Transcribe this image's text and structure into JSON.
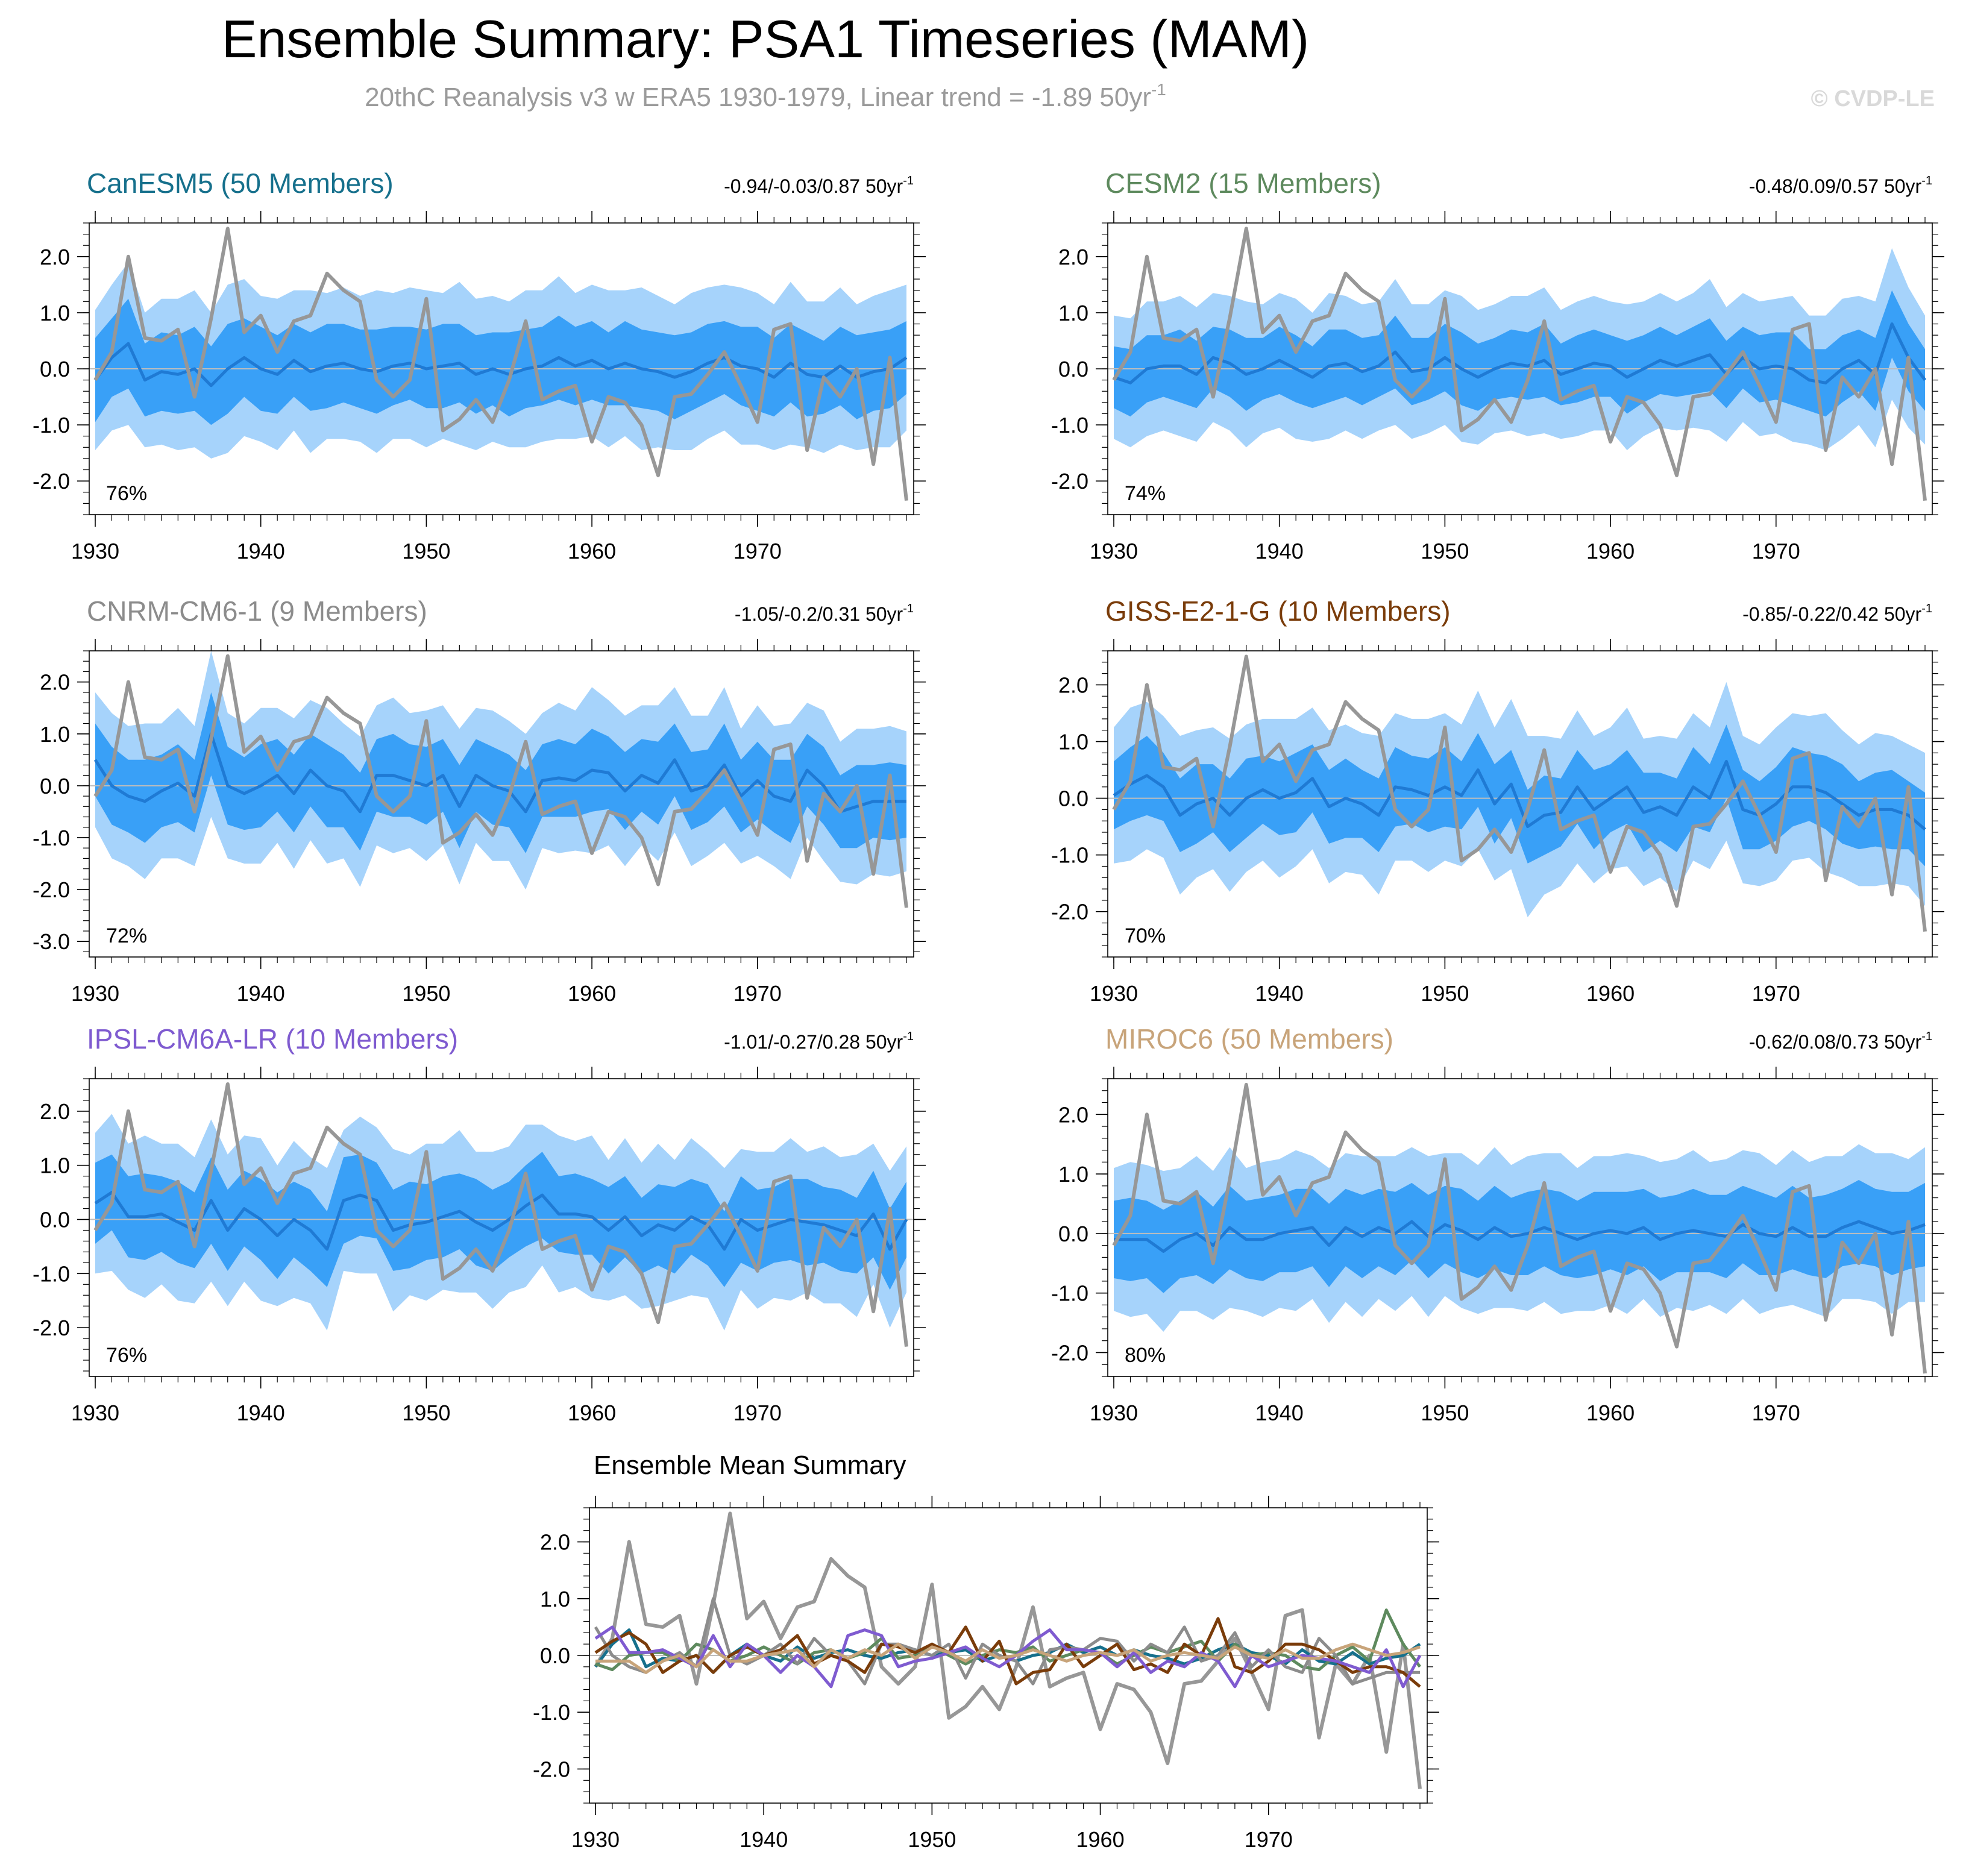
{
  "header": {
    "title": "Ensemble Summary: PSA1 Timeseries (MAM)",
    "subtitle": "20thC Reanalysis v3 w ERA5 1930-1979, Linear trend = -1.89 50yr",
    "subtitle_sup": "-1",
    "watermark": "© CVDP-LE"
  },
  "colors": {
    "outer_band": "#a6d3fb",
    "inner_band": "#39a0f7",
    "ens_mean": "#1f7ad4",
    "obs": "#979797",
    "zero_line": "#bdbdbd"
  },
  "chart_data": [
    {
      "type": "area",
      "model": "CanESM5 (50 Members)",
      "model_color": "#16708c",
      "trend_text": "-0.94/-0.03/0.87 50yr",
      "trend_sup": "-1",
      "pct_label": "76%",
      "ylim": [
        -2.6,
        2.6
      ],
      "yticks": [
        -2.0,
        -1.0,
        0.0,
        1.0,
        2.0
      ],
      "ytick_labels": [
        "-2.0",
        "-1.0",
        "0.0",
        "1.0",
        "2.0"
      ],
      "xticks": [
        1930,
        1940,
        1950,
        1960,
        1970
      ],
      "xtick_labels": [
        "1930",
        "1940",
        "1950",
        "1960",
        "1970"
      ],
      "ens_mean": [
        -0.2,
        0.2,
        0.45,
        -0.2,
        -0.05,
        -0.1,
        0.0,
        -0.3,
        0.0,
        0.2,
        0.0,
        -0.1,
        0.15,
        -0.05,
        0.05,
        0.1,
        0.0,
        -0.05,
        0.05,
        0.1,
        0.0,
        0.05,
        0.1,
        -0.1,
        0.0,
        -0.1,
        0.0,
        0.05,
        0.2,
        0.05,
        0.15,
        0.0,
        0.1,
        0.0,
        -0.05,
        -0.15,
        -0.05,
        0.1,
        0.2,
        0.05,
        0.0,
        -0.15,
        0.1,
        -0.1,
        -0.15,
        0.05,
        -0.15,
        -0.05,
        0.0,
        0.2
      ],
      "inner_spread": [
        0.75,
        0.7,
        0.8,
        0.65,
        0.7,
        0.7,
        0.75,
        0.7,
        0.8,
        0.7,
        0.75,
        0.7,
        0.65,
        0.7,
        0.75,
        0.7,
        0.7,
        0.75,
        0.7,
        0.65,
        0.7,
        0.75,
        0.7,
        0.7,
        0.65,
        0.75,
        0.7,
        0.7,
        0.75,
        0.7,
        0.7,
        0.65,
        0.75,
        0.7,
        0.7,
        0.75,
        0.7,
        0.7,
        0.65,
        0.7,
        0.75,
        0.7,
        0.7,
        0.75,
        0.65,
        0.7,
        0.75,
        0.7,
        0.7,
        0.65
      ],
      "outer_spread": [
        1.25,
        1.3,
        1.45,
        1.2,
        1.3,
        1.35,
        1.4,
        1.3,
        1.5,
        1.4,
        1.3,
        1.35,
        1.25,
        1.45,
        1.3,
        1.35,
        1.3,
        1.45,
        1.3,
        1.35,
        1.4,
        1.3,
        1.45,
        1.35,
        1.3,
        1.3,
        1.4,
        1.35,
        1.45,
        1.3,
        1.35,
        1.4,
        1.3,
        1.45,
        1.35,
        1.3,
        1.4,
        1.35,
        1.3,
        1.4,
        1.35,
        1.3,
        1.45,
        1.3,
        1.35,
        1.4,
        1.3,
        1.35,
        1.4,
        1.3
      ]
    },
    {
      "type": "area",
      "model": "CESM2 (15 Members)",
      "model_color": "#5e8a5e",
      "trend_text": "-0.48/0.09/0.57 50yr",
      "trend_sup": "-1",
      "pct_label": "74%",
      "ylim": [
        -2.6,
        2.6
      ],
      "yticks": [
        -2.0,
        -1.0,
        0.0,
        1.0,
        2.0
      ],
      "ytick_labels": [
        "-2.0",
        "-1.0",
        "0.0",
        "1.0",
        "2.0"
      ],
      "xticks": [
        1930,
        1940,
        1950,
        1960,
        1970
      ],
      "xtick_labels": [
        "1930",
        "1940",
        "1950",
        "1960",
        "1970"
      ],
      "ens_mean": [
        -0.15,
        -0.25,
        0.0,
        0.05,
        0.05,
        -0.1,
        0.2,
        0.1,
        -0.1,
        0.0,
        0.15,
        0.0,
        -0.15,
        0.05,
        0.1,
        -0.05,
        0.05,
        0.3,
        -0.05,
        0.0,
        0.2,
        0.0,
        -0.15,
        0.0,
        0.1,
        0.05,
        0.15,
        -0.1,
        0.0,
        0.1,
        0.05,
        -0.15,
        0.0,
        0.15,
        0.05,
        0.15,
        0.25,
        -0.1,
        0.2,
        0.0,
        0.05,
        0.0,
        -0.2,
        -0.25,
        0.0,
        0.15,
        -0.1,
        0.8,
        0.2,
        -0.2
      ],
      "inner_spread": [
        0.55,
        0.6,
        0.6,
        0.55,
        0.65,
        0.6,
        0.55,
        0.6,
        0.65,
        0.55,
        0.6,
        0.6,
        0.55,
        0.65,
        0.6,
        0.6,
        0.55,
        0.65,
        0.6,
        0.55,
        0.6,
        0.65,
        0.6,
        0.55,
        0.6,
        0.6,
        0.65,
        0.55,
        0.6,
        0.6,
        0.55,
        0.65,
        0.6,
        0.6,
        0.55,
        0.6,
        0.65,
        0.6,
        0.55,
        0.6,
        0.6,
        0.65,
        0.55,
        0.6,
        0.6,
        0.55,
        0.65,
        0.6,
        0.6,
        0.55
      ],
      "outer_spread": [
        1.1,
        1.15,
        1.2,
        1.15,
        1.25,
        1.2,
        1.15,
        1.2,
        1.3,
        1.15,
        1.2,
        1.25,
        1.15,
        1.3,
        1.2,
        1.2,
        1.15,
        1.3,
        1.2,
        1.15,
        1.2,
        1.3,
        1.2,
        1.15,
        1.2,
        1.25,
        1.3,
        1.15,
        1.2,
        1.2,
        1.15,
        1.3,
        1.2,
        1.2,
        1.15,
        1.2,
        1.35,
        1.2,
        1.15,
        1.2,
        1.2,
        1.3,
        1.15,
        1.2,
        1.25,
        1.15,
        1.3,
        1.35,
        1.25,
        1.15
      ]
    },
    {
      "type": "area",
      "model": "CNRM-CM6-1 (9 Members)",
      "model_color": "#8c8c8c",
      "trend_text": "-1.05/-0.2/0.31 50yr",
      "trend_sup": "-1",
      "pct_label": "72%",
      "ylim": [
        -3.3,
        2.6
      ],
      "yticks": [
        -3.0,
        -2.0,
        -1.0,
        0.0,
        1.0,
        2.0
      ],
      "ytick_labels": [
        "-3.0",
        "-2.0",
        "-1.0",
        "0.0",
        "1.0",
        "2.0"
      ],
      "xticks": [
        1930,
        1940,
        1950,
        1960,
        1970
      ],
      "xtick_labels": [
        "1930",
        "1940",
        "1950",
        "1960",
        "1970"
      ],
      "ens_mean": [
        0.5,
        0.0,
        -0.2,
        -0.3,
        -0.1,
        0.05,
        -0.2,
        1.0,
        0.0,
        -0.15,
        0.0,
        0.2,
        -0.15,
        0.3,
        0.0,
        -0.1,
        -0.5,
        0.2,
        0.2,
        0.1,
        0.0,
        0.2,
        -0.4,
        0.2,
        0.0,
        -0.1,
        -0.5,
        0.1,
        0.15,
        0.1,
        0.3,
        0.25,
        -0.1,
        0.2,
        0.05,
        0.5,
        -0.1,
        0.0,
        0.4,
        -0.2,
        0.1,
        -0.2,
        -0.3,
        0.3,
        0.0,
        -0.5,
        -0.4,
        -0.3,
        -0.3,
        -0.3
      ],
      "inner_spread": [
        0.7,
        0.75,
        0.7,
        0.8,
        0.7,
        0.75,
        0.7,
        0.8,
        0.75,
        0.7,
        0.8,
        0.7,
        0.75,
        0.7,
        0.8,
        0.7,
        0.75,
        0.7,
        0.8,
        0.7,
        0.75,
        0.7,
        0.8,
        0.7,
        0.75,
        0.7,
        0.8,
        0.7,
        0.75,
        0.7,
        0.8,
        0.7,
        0.75,
        0.7,
        0.8,
        0.7,
        0.75,
        0.7,
        0.8,
        0.7,
        0.75,
        0.7,
        0.8,
        0.7,
        0.75,
        0.7,
        0.8,
        0.7,
        0.75,
        0.7
      ],
      "outer_spread": [
        1.3,
        1.4,
        1.35,
        1.5,
        1.3,
        1.45,
        1.35,
        1.6,
        1.4,
        1.35,
        1.5,
        1.3,
        1.45,
        1.35,
        1.5,
        1.3,
        1.45,
        1.35,
        1.5,
        1.3,
        1.45,
        1.35,
        1.5,
        1.3,
        1.45,
        1.35,
        1.5,
        1.3,
        1.45,
        1.35,
        1.6,
        1.4,
        1.45,
        1.35,
        1.5,
        1.4,
        1.45,
        1.35,
        1.5,
        1.3,
        1.45,
        1.35,
        1.5,
        1.3,
        1.45,
        1.35,
        1.5,
        1.4,
        1.45,
        1.35
      ]
    },
    {
      "type": "area",
      "model": "GISS-E2-1-G (10 Members)",
      "model_color": "#7a3c0a",
      "trend_text": "-0.85/-0.22/0.42 50yr",
      "trend_sup": "-1",
      "pct_label": "70%",
      "ylim": [
        -2.8,
        2.6
      ],
      "yticks": [
        -2.0,
        -1.0,
        0.0,
        1.0,
        2.0
      ],
      "ytick_labels": [
        "-2.0",
        "-1.0",
        "0.0",
        "1.0",
        "2.0"
      ],
      "xticks": [
        1930,
        1940,
        1950,
        1960,
        1970
      ],
      "xtick_labels": [
        "1930",
        "1940",
        "1950",
        "1960",
        "1970"
      ],
      "ens_mean": [
        0.05,
        0.25,
        0.4,
        0.2,
        -0.3,
        -0.1,
        0.0,
        -0.3,
        0.0,
        0.15,
        0.0,
        0.1,
        0.35,
        -0.15,
        0.0,
        -0.1,
        -0.3,
        0.2,
        0.15,
        0.05,
        0.2,
        0.05,
        0.5,
        -0.1,
        0.25,
        -0.5,
        -0.3,
        -0.25,
        0.2,
        -0.2,
        0.0,
        0.2,
        -0.25,
        -0.15,
        -0.3,
        0.2,
        0.0,
        0.65,
        -0.2,
        -0.3,
        -0.1,
        0.2,
        0.2,
        0.1,
        -0.1,
        -0.3,
        -0.2,
        -0.2,
        -0.3,
        -0.55
      ],
      "inner_spread": [
        0.6,
        0.65,
        0.7,
        0.6,
        0.65,
        0.7,
        0.6,
        0.65,
        0.7,
        0.6,
        0.65,
        0.7,
        0.6,
        0.65,
        0.7,
        0.6,
        0.65,
        0.7,
        0.6,
        0.65,
        0.7,
        0.6,
        0.65,
        0.7,
        0.6,
        0.65,
        0.7,
        0.6,
        0.65,
        0.7,
        0.6,
        0.65,
        0.7,
        0.6,
        0.65,
        0.7,
        0.6,
        0.65,
        0.7,
        0.6,
        0.65,
        0.7,
        0.6,
        0.65,
        0.7,
        0.6,
        0.65,
        0.7,
        0.6,
        0.65
      ],
      "outer_spread": [
        1.2,
        1.35,
        1.3,
        1.25,
        1.4,
        1.3,
        1.25,
        1.35,
        1.3,
        1.25,
        1.4,
        1.3,
        1.25,
        1.35,
        1.3,
        1.25,
        1.4,
        1.3,
        1.25,
        1.35,
        1.3,
        1.25,
        1.4,
        1.35,
        1.5,
        1.6,
        1.4,
        1.3,
        1.35,
        1.3,
        1.25,
        1.4,
        1.3,
        1.25,
        1.35,
        1.3,
        1.25,
        1.4,
        1.3,
        1.25,
        1.35,
        1.3,
        1.25,
        1.4,
        1.3,
        1.25,
        1.35,
        1.3,
        1.25,
        1.35
      ]
    },
    {
      "type": "area",
      "model": "IPSL-CM6A-LR (10 Members)",
      "model_color": "#7f5bd0",
      "trend_text": "-1.01/-0.27/0.28 50yr",
      "trend_sup": "-1",
      "pct_label": "76%",
      "ylim": [
        -2.9,
        2.6
      ],
      "yticks": [
        -2.0,
        -1.0,
        0.0,
        1.0,
        2.0
      ],
      "ytick_labels": [
        "-2.0",
        "-1.0",
        "0.0",
        "1.0",
        "2.0"
      ],
      "xticks": [
        1930,
        1940,
        1950,
        1960,
        1970
      ],
      "xtick_labels": [
        "1930",
        "1940",
        "1950",
        "1960",
        "1970"
      ],
      "ens_mean": [
        0.3,
        0.5,
        0.05,
        0.05,
        0.1,
        -0.05,
        -0.2,
        0.35,
        -0.2,
        0.2,
        0.0,
        -0.3,
        0.0,
        -0.2,
        -0.55,
        0.35,
        0.45,
        0.35,
        -0.2,
        -0.1,
        -0.05,
        0.05,
        0.15,
        -0.05,
        -0.2,
        0.0,
        0.25,
        0.45,
        0.1,
        0.1,
        0.05,
        -0.2,
        0.05,
        -0.3,
        -0.1,
        -0.2,
        0.05,
        -0.1,
        -0.55,
        0.0,
        -0.2,
        -0.1,
        0.0,
        -0.05,
        -0.1,
        -0.2,
        -0.3,
        0.1,
        -0.55,
        0.0
      ],
      "inner_spread": [
        0.75,
        0.7,
        0.75,
        0.8,
        0.7,
        0.75,
        0.7,
        0.8,
        0.75,
        0.7,
        0.75,
        0.8,
        0.7,
        0.75,
        0.7,
        0.8,
        0.75,
        0.7,
        0.75,
        0.8,
        0.7,
        0.75,
        0.7,
        0.8,
        0.75,
        0.7,
        0.75,
        0.8,
        0.7,
        0.75,
        0.7,
        0.8,
        0.75,
        0.7,
        0.75,
        0.8,
        0.7,
        0.75,
        0.7,
        0.8,
        0.75,
        0.7,
        0.75,
        0.8,
        0.7,
        0.75,
        0.7,
        0.8,
        0.75,
        0.7
      ],
      "outer_spread": [
        1.3,
        1.45,
        1.35,
        1.5,
        1.3,
        1.45,
        1.35,
        1.5,
        1.4,
        1.35,
        1.5,
        1.3,
        1.45,
        1.35,
        1.5,
        1.3,
        1.45,
        1.35,
        1.5,
        1.3,
        1.45,
        1.35,
        1.5,
        1.3,
        1.45,
        1.35,
        1.5,
        1.3,
        1.45,
        1.35,
        1.5,
        1.3,
        1.45,
        1.35,
        1.5,
        1.3,
        1.45,
        1.35,
        1.5,
        1.3,
        1.45,
        1.35,
        1.5,
        1.3,
        1.45,
        1.35,
        1.5,
        1.3,
        1.45,
        1.35
      ]
    },
    {
      "type": "area",
      "model": "MIROC6 (50 Members)",
      "model_color": "#c8a47a",
      "trend_text": "-0.62/0.08/0.73 50yr",
      "trend_sup": "-1",
      "pct_label": "80%",
      "ylim": [
        -2.4,
        2.6
      ],
      "yticks": [
        -2.0,
        -1.0,
        0.0,
        1.0,
        2.0
      ],
      "ytick_labels": [
        "-2.0",
        "-1.0",
        "0.0",
        "1.0",
        "2.0"
      ],
      "xticks": [
        1930,
        1940,
        1950,
        1960,
        1970
      ],
      "xtick_labels": [
        "1930",
        "1940",
        "1950",
        "1960",
        "1970"
      ],
      "ens_mean": [
        -0.1,
        -0.1,
        -0.1,
        -0.3,
        -0.1,
        0.0,
        -0.2,
        0.1,
        -0.1,
        -0.1,
        0.0,
        0.05,
        0.1,
        -0.2,
        0.1,
        -0.05,
        0.1,
        0.0,
        0.2,
        -0.05,
        0.15,
        0.05,
        -0.1,
        0.1,
        -0.05,
        0.0,
        0.1,
        0.0,
        -0.1,
        0.0,
        0.05,
        0.0,
        0.1,
        -0.1,
        0.0,
        0.05,
        0.0,
        -0.05,
        0.15,
        0.0,
        -0.05,
        0.1,
        -0.05,
        -0.05,
        0.1,
        0.2,
        0.1,
        0.0,
        0.05,
        0.15
      ],
      "inner_spread": [
        0.65,
        0.7,
        0.65,
        0.7,
        0.65,
        0.7,
        0.65,
        0.7,
        0.65,
        0.7,
        0.65,
        0.7,
        0.65,
        0.7,
        0.65,
        0.7,
        0.65,
        0.7,
        0.65,
        0.7,
        0.65,
        0.7,
        0.65,
        0.7,
        0.65,
        0.7,
        0.65,
        0.7,
        0.65,
        0.7,
        0.65,
        0.7,
        0.65,
        0.7,
        0.65,
        0.7,
        0.65,
        0.7,
        0.65,
        0.7,
        0.65,
        0.7,
        0.65,
        0.7,
        0.65,
        0.7,
        0.65,
        0.7,
        0.65,
        0.7
      ],
      "outer_spread": [
        1.2,
        1.3,
        1.25,
        1.35,
        1.2,
        1.3,
        1.25,
        1.35,
        1.2,
        1.3,
        1.25,
        1.35,
        1.2,
        1.3,
        1.25,
        1.35,
        1.2,
        1.3,
        1.25,
        1.35,
        1.2,
        1.3,
        1.25,
        1.35,
        1.2,
        1.3,
        1.25,
        1.35,
        1.2,
        1.3,
        1.25,
        1.35,
        1.2,
        1.3,
        1.25,
        1.35,
        1.2,
        1.3,
        1.25,
        1.35,
        1.2,
        1.3,
        1.25,
        1.35,
        1.2,
        1.3,
        1.25,
        1.35,
        1.2,
        1.3
      ]
    },
    {
      "type": "line",
      "title": "Ensemble Mean Summary",
      "ylim": [
        -2.6,
        2.6
      ],
      "yticks": [
        -2.0,
        -1.0,
        0.0,
        1.0,
        2.0
      ],
      "ytick_labels": [
        "-2.0",
        "-1.0",
        "0.0",
        "1.0",
        "2.0"
      ],
      "xticks": [
        1930,
        1940,
        1950,
        1960,
        1970
      ],
      "xtick_labels": [
        "1930",
        "1940",
        "1950",
        "1960",
        "1970"
      ],
      "series_refs": [
        0,
        1,
        2,
        3,
        4,
        5
      ]
    }
  ],
  "obs_series": {
    "name": "20thC Reanalysis v3 w ERA5",
    "x_start": 1930,
    "values": [
      -0.2,
      0.3,
      2.0,
      0.55,
      0.5,
      0.7,
      -0.5,
      0.9,
      2.5,
      0.65,
      0.95,
      0.3,
      0.85,
      0.95,
      1.7,
      1.4,
      1.2,
      -0.2,
      -0.5,
      -0.2,
      1.25,
      -1.1,
      -0.9,
      -0.55,
      -0.95,
      -0.2,
      0.85,
      -0.55,
      -0.4,
      -0.3,
      -1.3,
      -0.5,
      -0.6,
      -1.0,
      -1.9,
      -0.5,
      -0.45,
      -0.1,
      0.3,
      -0.3,
      -0.95,
      0.7,
      0.8,
      -1.45,
      -0.15,
      -0.5,
      0.0,
      -1.7,
      0.2,
      -2.35
    ]
  }
}
